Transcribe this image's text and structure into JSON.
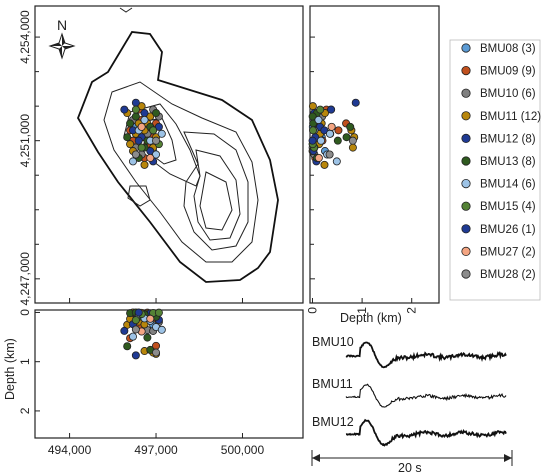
{
  "chart_data": [
    {
      "type": "scatter",
      "panel": "map",
      "north_label": "N",
      "x_ticks": [
        "494,000",
        "497,000",
        "500,000"
      ],
      "y_ticks": [
        "4,254,000",
        "4,251,000",
        "4,247,000"
      ],
      "x_range": [
        492800,
        502100
      ],
      "y_range": [
        4246300,
        4254900
      ],
      "series": [
        {
          "name": "BMU08",
          "count": "(3)",
          "color": "#5b9bd5",
          "points": [
            [
              496600,
              4251100
            ],
            [
              496900,
              4250700
            ],
            [
              496300,
              4251400
            ]
          ]
        },
        {
          "name": "BMU09",
          "count": "(9)",
          "color": "#c0501e",
          "points": [
            [
              496500,
              4251600
            ],
            [
              496800,
              4251300
            ],
            [
              496200,
              4251000
            ],
            [
              496700,
              4250900
            ],
            [
              497000,
              4251500
            ],
            [
              496400,
              4251900
            ],
            [
              496900,
              4251100
            ],
            [
              496600,
              4250500
            ],
            [
              496100,
              4251300
            ]
          ]
        },
        {
          "name": "BMU10",
          "count": "(6)",
          "color": "#808080",
          "points": [
            [
              496700,
              4251200
            ],
            [
              496300,
              4250800
            ],
            [
              497100,
              4251700
            ],
            [
              496500,
              4250600
            ],
            [
              496900,
              4251900
            ],
            [
              496200,
              4251600
            ]
          ]
        },
        {
          "name": "BMU11",
          "count": "(12)",
          "color": "#b8860b",
          "points": [
            [
              496000,
              4251800
            ],
            [
              496400,
              4251500
            ],
            [
              496800,
              4251700
            ],
            [
              496200,
              4250700
            ],
            [
              496600,
              4251300
            ],
            [
              497000,
              4251100
            ],
            [
              496500,
              4252000
            ],
            [
              496300,
              4251200
            ],
            [
              496900,
              4250800
            ],
            [
              496700,
              4251500
            ],
            [
              496100,
              4250900
            ],
            [
              496600,
              4250300
            ]
          ]
        },
        {
          "name": "BMU12",
          "count": "(8)",
          "color": "#1f3a93",
          "points": [
            [
              495900,
              4251900
            ],
            [
              496500,
              4251100
            ],
            [
              496800,
              4250700
            ],
            [
              496300,
              4252100
            ],
            [
              497100,
              4251400
            ],
            [
              496600,
              4251800
            ],
            [
              496200,
              4251300
            ],
            [
              496900,
              4250400
            ]
          ]
        },
        {
          "name": "BMU13",
          "count": "(8)",
          "color": "#2f5a1f",
          "points": [
            [
              496100,
              4251500
            ],
            [
              496700,
              4251000
            ],
            [
              496400,
              4250500
            ],
            [
              497000,
              4251800
            ],
            [
              496300,
              4251700
            ],
            [
              496800,
              4251400
            ],
            [
              496600,
              4250800
            ],
            [
              496000,
              4251100
            ]
          ]
        },
        {
          "name": "BMU14",
          "count": "(6)",
          "color": "#9dc3e6",
          "points": [
            [
              496800,
              4251000
            ],
            [
              496400,
              4251300
            ],
            [
              497000,
              4250600
            ],
            [
              496600,
              4251600
            ],
            [
              496200,
              4250400
            ],
            [
              497200,
              4251200
            ]
          ]
        },
        {
          "name": "BMU15",
          "count": "(4)",
          "color": "#548235",
          "points": [
            [
              496900,
              4251300
            ],
            [
              496500,
              4250800
            ],
            [
              496300,
              4251900
            ],
            [
              497100,
              4250900
            ]
          ]
        },
        {
          "name": "BMU26",
          "count": "(1)",
          "color": "#1f3a93",
          "points": [
            [
              496400,
              4251000
            ]
          ]
        },
        {
          "name": "BMU27",
          "count": "(2)",
          "color": "#f4a582",
          "points": [
            [
              496800,
              4250500
            ],
            [
              496500,
              4251400
            ]
          ]
        },
        {
          "name": "BMU28",
          "count": "(2)",
          "color": "#8c8c8c",
          "points": [
            [
              496300,
              4250600
            ],
            [
              497000,
              4251000
            ]
          ]
        }
      ]
    },
    {
      "type": "scatter",
      "panel": "depth-vs-northing",
      "xlabel": "Depth (km)",
      "x_ticks": [
        "0",
        "1",
        "2"
      ],
      "x_range": [
        -0.05,
        2.55
      ]
    },
    {
      "type": "scatter",
      "panel": "easting-vs-depth",
      "ylabel": "Depth (km)",
      "y_ticks": [
        "0",
        "1",
        "2"
      ],
      "y_range": [
        -0.05,
        2.55
      ]
    },
    {
      "type": "line",
      "panel": "waveforms",
      "traces": [
        "BMU10",
        "BMU11",
        "BMU12"
      ],
      "duration_label": "20 s",
      "duration_s": 20
    }
  ]
}
